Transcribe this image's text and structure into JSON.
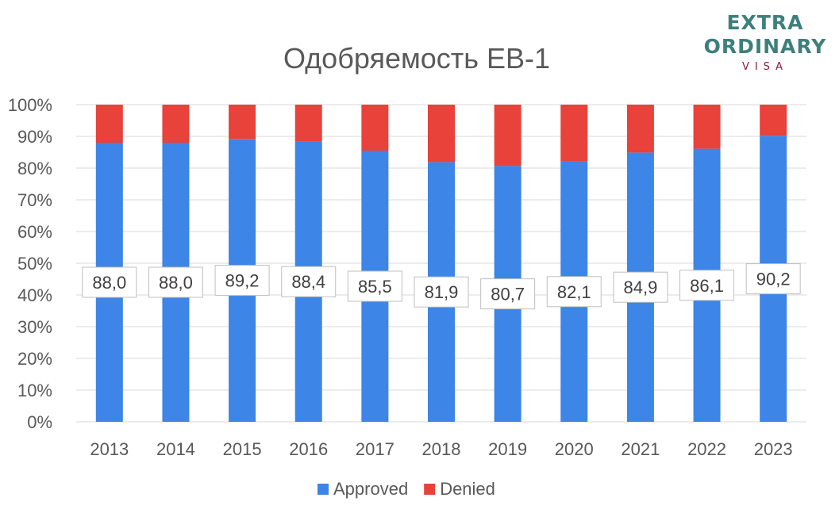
{
  "logo": {
    "line1": "EXTRA",
    "line2": "ORDINARY",
    "line3": "VISA",
    "color_main": "#3d7f7b",
    "color_sub": "#8b1a3a"
  },
  "chart_data": {
    "type": "bar",
    "stacked": "percent",
    "title": "Одобряемость EB-1",
    "categories": [
      "2013",
      "2014",
      "2015",
      "2016",
      "2017",
      "2018",
      "2019",
      "2020",
      "2021",
      "2022",
      "2023"
    ],
    "series": [
      {
        "name": "Approved",
        "color": "#3d85e6",
        "values": [
          88.0,
          88.0,
          89.2,
          88.4,
          85.5,
          81.9,
          80.7,
          82.1,
          84.9,
          86.1,
          90.2
        ],
        "labels": [
          "88,0",
          "88,0",
          "89,2",
          "88,4",
          "85,5",
          "81,9",
          "80,7",
          "82,1",
          "84,9",
          "86,1",
          "90,2"
        ]
      },
      {
        "name": "Denied",
        "color": "#e8423a",
        "values": [
          12.0,
          12.0,
          10.8,
          11.6,
          14.5,
          18.1,
          19.3,
          17.9,
          15.1,
          13.9,
          9.8
        ]
      }
    ],
    "yticks": [
      "0%",
      "10%",
      "20%",
      "30%",
      "40%",
      "50%",
      "60%",
      "70%",
      "80%",
      "90%",
      "100%"
    ],
    "ylim": [
      0,
      100
    ],
    "grid": true,
    "legend": "bottom"
  }
}
